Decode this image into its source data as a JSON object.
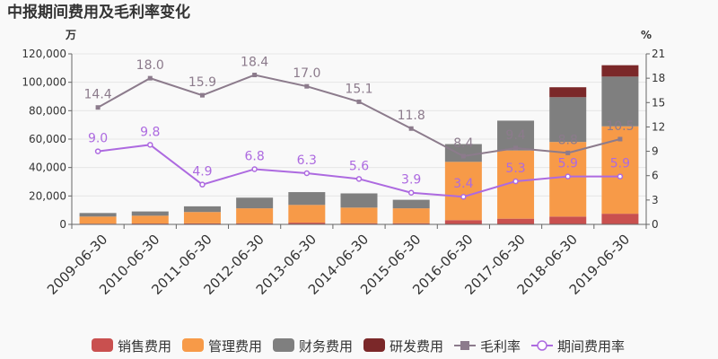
{
  "chart_data": {
    "type": "bar",
    "title": "中报期间费用及毛利率变化",
    "left_unit": "万",
    "right_unit": "%",
    "categories": [
      "2009-06-30",
      "2010-06-30",
      "2011-06-30",
      "2012-06-30",
      "2013-06-30",
      "2014-06-30",
      "2015-06-30",
      "2016-06-30",
      "2017-06-30",
      "2018-06-30",
      "2019-06-30"
    ],
    "left_axis": {
      "min": 0,
      "max": 120000,
      "ticks": [
        0,
        20000,
        40000,
        60000,
        80000,
        100000,
        120000
      ],
      "tick_labels": [
        "0",
        "20,000",
        "40,000",
        "60,000",
        "80,000",
        "100,000",
        "120,000"
      ]
    },
    "right_axis": {
      "min": 0,
      "max": 21,
      "ticks": [
        0,
        3,
        6,
        9,
        12,
        15,
        18,
        21
      ],
      "tick_labels": [
        "0",
        "3",
        "6",
        "9",
        "12",
        "15",
        "18",
        "21"
      ]
    },
    "bar_series": [
      {
        "name": "销售费用",
        "color": "#c9504f",
        "values": [
          500,
          600,
          700,
          800,
          1200,
          800,
          800,
          3000,
          4000,
          5500,
          7500
        ]
      },
      {
        "name": "管理费用",
        "color": "#f79a48",
        "values": [
          5000,
          5500,
          8000,
          10500,
          12500,
          11000,
          10500,
          41000,
          48000,
          52500,
          61500
        ]
      },
      {
        "name": "财务费用",
        "color": "#7f7f7f",
        "values": [
          2500,
          3000,
          4000,
          7500,
          9000,
          10000,
          6000,
          12500,
          21000,
          31500,
          35000
        ]
      },
      {
        "name": "研发费用",
        "color": "#7b2829",
        "values": [
          0,
          0,
          0,
          0,
          0,
          0,
          0,
          0,
          0,
          7000,
          8000
        ]
      }
    ],
    "line_series": [
      {
        "name": "毛利率",
        "color": "#8c7b8c",
        "marker": "square",
        "values": [
          14.4,
          18.0,
          15.9,
          18.4,
          17.0,
          15.1,
          11.8,
          8.4,
          9.4,
          8.8,
          10.5
        ],
        "labels": [
          "14.4",
          "18.0",
          "15.9",
          "18.4",
          "17.0",
          "15.1",
          "11.8",
          "8.4",
          "9.4",
          "8.8",
          "10.5"
        ]
      },
      {
        "name": "期间费用率",
        "color": "#ad6ae0",
        "marker": "circle",
        "values": [
          9.0,
          9.8,
          4.9,
          6.8,
          6.3,
          5.6,
          3.9,
          3.4,
          5.3,
          5.9,
          5.9
        ],
        "labels": [
          "9.0",
          "9.8",
          "4.9",
          "6.8",
          "6.3",
          "5.6",
          "3.9",
          "3.4",
          "5.3",
          "5.9",
          "5.9"
        ]
      }
    ],
    "grid": true,
    "legend_position": "bottom"
  }
}
